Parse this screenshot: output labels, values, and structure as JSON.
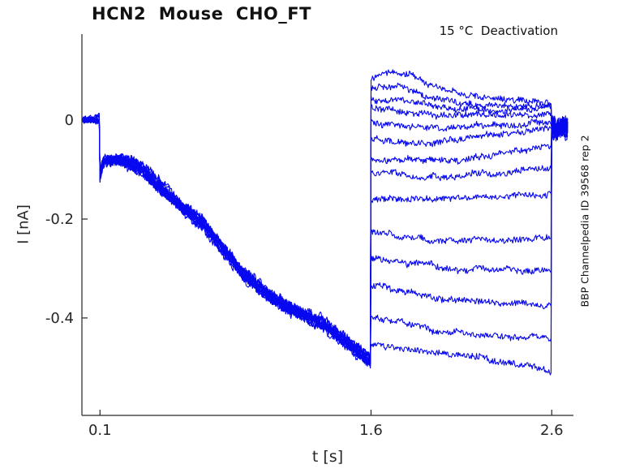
{
  "chart_data": {
    "type": "line",
    "title": "HCN2  Mouse  CHO_FT",
    "annotation": "15 °C  Deactivation",
    "watermark": "BBP Channelpedia ID 39568 rep 2",
    "xlabel": "t [s]",
    "ylabel": "I [nA]",
    "x_ticks": [
      0.1,
      1.6,
      2.6
    ],
    "x_tick_labels": [
      "0.1",
      "1.6",
      "2.6"
    ],
    "y_ticks": [
      0,
      -0.2,
      -0.4
    ],
    "y_tick_labels": [
      "0",
      "-0.2",
      "-0.4"
    ],
    "xlim": [
      0.0,
      2.72
    ],
    "ylim": [
      -0.597,
      0.174
    ],
    "grid": false,
    "legend": false,
    "trace_color": "#0808f0",
    "axis_color": "#262626",
    "n_sweeps": 14,
    "segments": {
      "baseline": {
        "t0": 0.004,
        "t1": 0.1,
        "level": 0.0,
        "noise": 0.005
      },
      "activation": {
        "t0": 0.1,
        "t1": 1.6,
        "noise": 0.008,
        "band_spread": 0.016,
        "keypoints": [
          [
            0.1,
            -0.118
          ],
          [
            0.108,
            -0.1
          ],
          [
            0.125,
            -0.082
          ],
          [
            0.22,
            -0.08
          ],
          [
            0.33,
            -0.1
          ],
          [
            0.445,
            -0.14
          ],
          [
            0.55,
            -0.175
          ],
          [
            0.67,
            -0.21
          ],
          [
            0.78,
            -0.26
          ],
          [
            0.89,
            -0.31
          ],
          [
            1.0,
            -0.345
          ],
          [
            1.12,
            -0.375
          ],
          [
            1.23,
            -0.395
          ],
          [
            1.34,
            -0.412
          ],
          [
            1.45,
            -0.445
          ],
          [
            1.57,
            -0.48
          ],
          [
            1.6,
            -0.49
          ]
        ]
      },
      "tails": {
        "t0": 1.6,
        "t1": 2.6,
        "noise": 0.0055,
        "keypoints_per_sweep": [
          [
            [
              1.6,
              0.085
            ],
            [
              1.7,
              0.1
            ],
            [
              1.85,
              0.086
            ],
            [
              2.05,
              0.058
            ],
            [
              2.3,
              0.044
            ],
            [
              2.6,
              0.038
            ]
          ],
          [
            [
              1.6,
              0.066
            ],
            [
              1.75,
              0.069
            ],
            [
              1.95,
              0.049
            ],
            [
              2.2,
              0.036
            ],
            [
              2.6,
              0.03
            ]
          ],
          [
            [
              1.6,
              0.047
            ],
            [
              1.8,
              0.041
            ],
            [
              2.05,
              0.024
            ],
            [
              2.3,
              0.02
            ],
            [
              2.6,
              0.024
            ]
          ],
          [
            [
              1.6,
              0.022
            ],
            [
              1.9,
              0.01
            ],
            [
              2.2,
              0.005
            ],
            [
              2.6,
              0.013
            ]
          ],
          [
            [
              1.6,
              -0.005
            ],
            [
              1.9,
              -0.016
            ],
            [
              2.2,
              -0.012
            ],
            [
              2.6,
              0.0
            ]
          ],
          [
            [
              1.6,
              -0.038
            ],
            [
              1.9,
              -0.046
            ],
            [
              2.2,
              -0.036
            ],
            [
              2.6,
              -0.022
            ]
          ],
          [
            [
              1.6,
              -0.076
            ],
            [
              1.9,
              -0.081
            ],
            [
              2.2,
              -0.069
            ],
            [
              2.6,
              -0.053
            ]
          ],
          [
            [
              1.6,
              -0.115
            ],
            [
              1.9,
              -0.121
            ],
            [
              2.2,
              -0.111
            ],
            [
              2.6,
              -0.099
            ]
          ],
          [
            [
              1.6,
              -0.156
            ],
            [
              2.0,
              -0.163
            ],
            [
              2.3,
              -0.159
            ],
            [
              2.6,
              -0.151
            ]
          ],
          [
            [
              1.6,
              -0.228
            ],
            [
              2.0,
              -0.241
            ],
            [
              2.6,
              -0.236
            ]
          ],
          [
            [
              1.6,
              -0.281
            ],
            [
              2.0,
              -0.298
            ],
            [
              2.6,
              -0.301
            ]
          ],
          [
            [
              1.6,
              -0.333
            ],
            [
              2.0,
              -0.36
            ],
            [
              2.6,
              -0.369
            ]
          ],
          [
            [
              1.6,
              -0.396
            ],
            [
              2.0,
              -0.428
            ],
            [
              2.6,
              -0.44
            ]
          ],
          [
            [
              1.6,
              -0.452
            ],
            [
              2.1,
              -0.48
            ],
            [
              2.6,
              -0.508
            ]
          ]
        ]
      },
      "post": {
        "t0": 2.6,
        "t1": 2.69,
        "level": -0.015,
        "noise": 0.02
      }
    }
  }
}
